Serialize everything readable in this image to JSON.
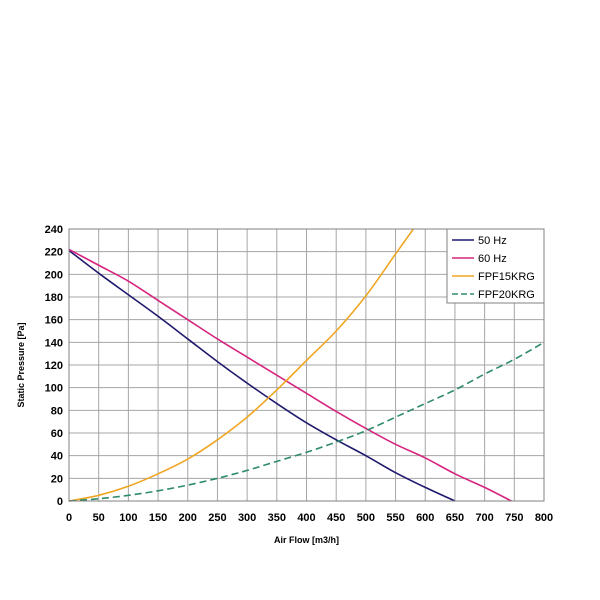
{
  "chart_data": {
    "type": "line",
    "title": "",
    "xlabel": "Air Flow [m3/h]",
    "ylabel": "Static Pressure [Pa]",
    "xlim": [
      0,
      800
    ],
    "ylim": [
      0,
      240
    ],
    "x_ticks": [
      0,
      50,
      100,
      150,
      200,
      250,
      300,
      350,
      400,
      450,
      500,
      550,
      600,
      650,
      700,
      750,
      800
    ],
    "y_ticks": [
      0,
      20,
      40,
      60,
      80,
      100,
      120,
      140,
      160,
      180,
      200,
      220,
      240
    ],
    "grid": true,
    "legend_position": "top-right",
    "series": [
      {
        "name": "50 Hz",
        "color": "#1f1a6e",
        "dash": "solid",
        "x": [
          0,
          50,
          100,
          150,
          200,
          250,
          300,
          350,
          400,
          450,
          500,
          550,
          600,
          650
        ],
        "y": [
          221,
          201,
          182,
          163,
          143,
          123,
          104,
          86,
          69,
          54,
          40,
          25,
          12,
          0
        ]
      },
      {
        "name": "60 Hz",
        "color": "#d6247f",
        "dash": "solid",
        "x": [
          0,
          50,
          100,
          150,
          200,
          250,
          300,
          350,
          400,
          450,
          500,
          550,
          600,
          650,
          700,
          745
        ],
        "y": [
          222,
          208,
          194,
          177,
          160,
          143,
          127,
          111,
          95,
          79,
          64,
          50,
          38,
          24,
          12,
          0
        ]
      },
      {
        "name": "FPF15KRG",
        "color": "#f0a623",
        "dash": "solid",
        "x": [
          0,
          50,
          100,
          150,
          200,
          250,
          300,
          350,
          400,
          450,
          500,
          550,
          580
        ],
        "y": [
          0,
          5,
          13,
          24,
          37,
          54,
          74,
          98,
          124,
          150,
          181,
          218,
          240
        ]
      },
      {
        "name": "FPF20KRG",
        "color": "#2e8b6a",
        "dash": "dashed",
        "x": [
          0,
          50,
          100,
          150,
          200,
          250,
          300,
          350,
          400,
          450,
          500,
          550,
          600,
          650,
          700,
          750,
          800
        ],
        "y": [
          0,
          2,
          5,
          9,
          14,
          20,
          27,
          35,
          43,
          52,
          62,
          74,
          86,
          98,
          112,
          125,
          140
        ]
      }
    ]
  }
}
